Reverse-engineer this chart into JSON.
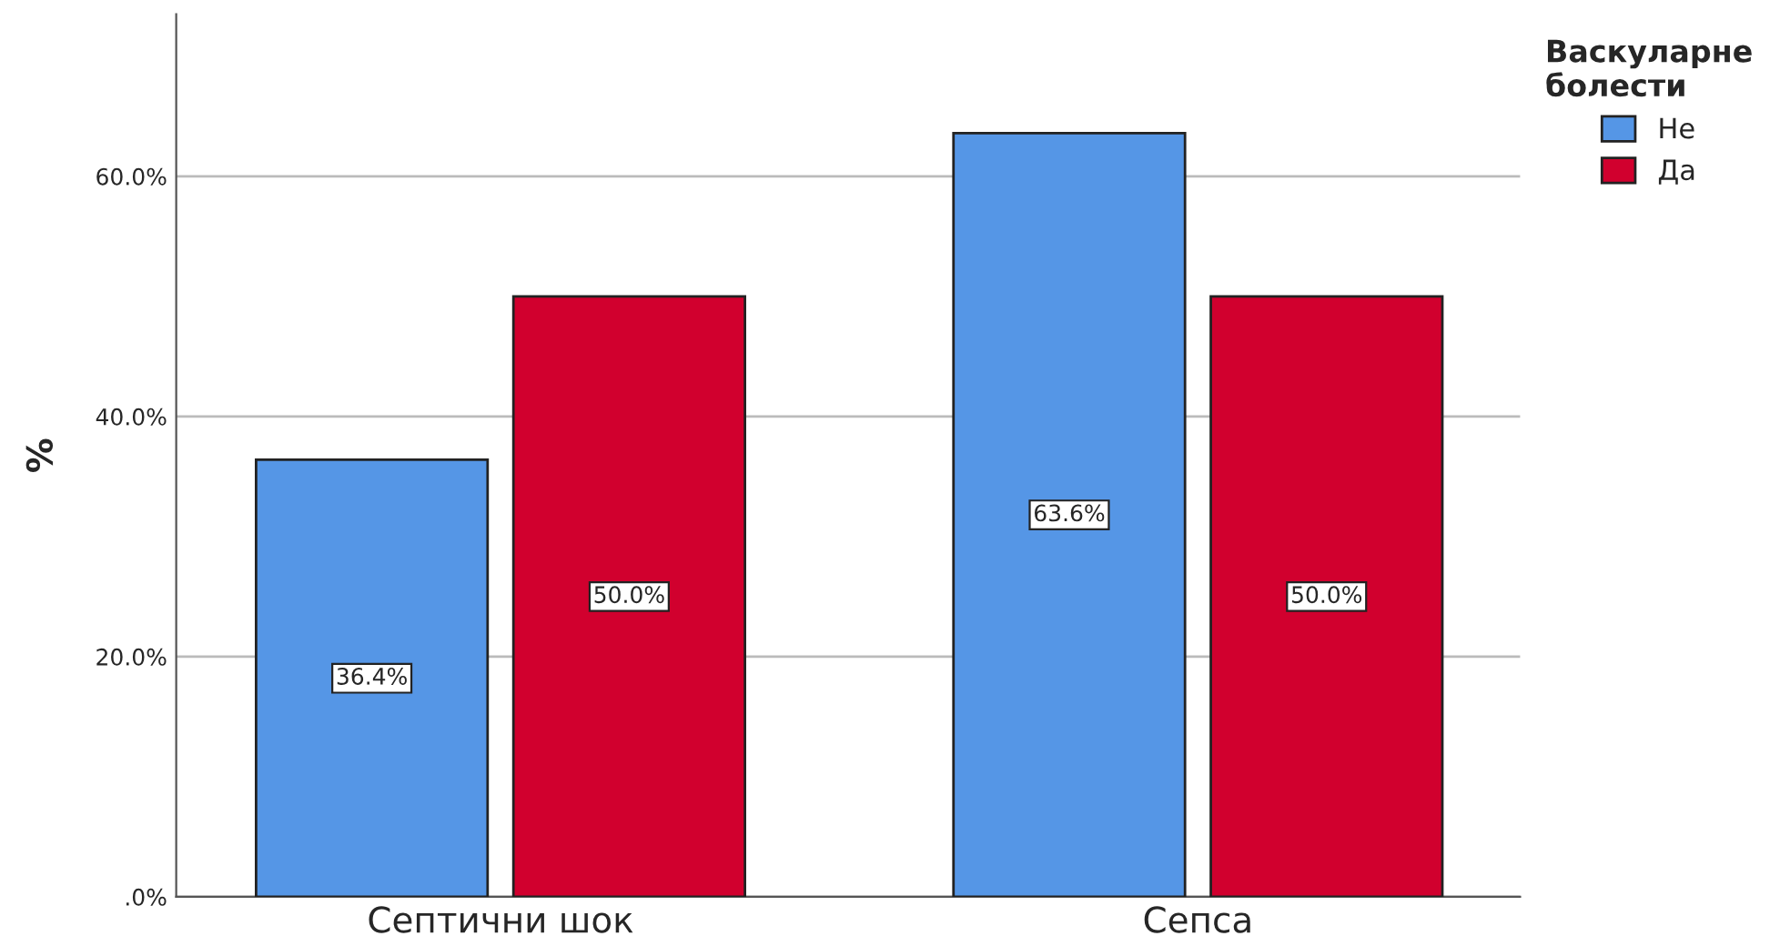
{
  "chart_data": {
    "type": "bar",
    "ylabel": "%",
    "legend_title": "Васкуларне\nболести",
    "categories": [
      "Септични шок",
      "Сепса"
    ],
    "series": [
      {
        "name": "Не",
        "color": "#5596e6",
        "values": [
          36.4,
          63.6
        ],
        "value_labels": [
          "36.4%",
          "63.6%"
        ]
      },
      {
        "name": "Да",
        "color": "#d1002e",
        "values": [
          50.0,
          50.0
        ],
        "value_labels": [
          "50.0%",
          "50.0%"
        ]
      }
    ],
    "ylim": [
      0,
      73.5
    ],
    "yticks": [
      {
        "value": 0,
        "label": ".0%"
      },
      {
        "value": 20,
        "label": "20.0%"
      },
      {
        "value": 40,
        "label": "40.0%"
      },
      {
        "value": 60,
        "label": "60.0%"
      }
    ],
    "grid": "y",
    "legend": "top right"
  }
}
